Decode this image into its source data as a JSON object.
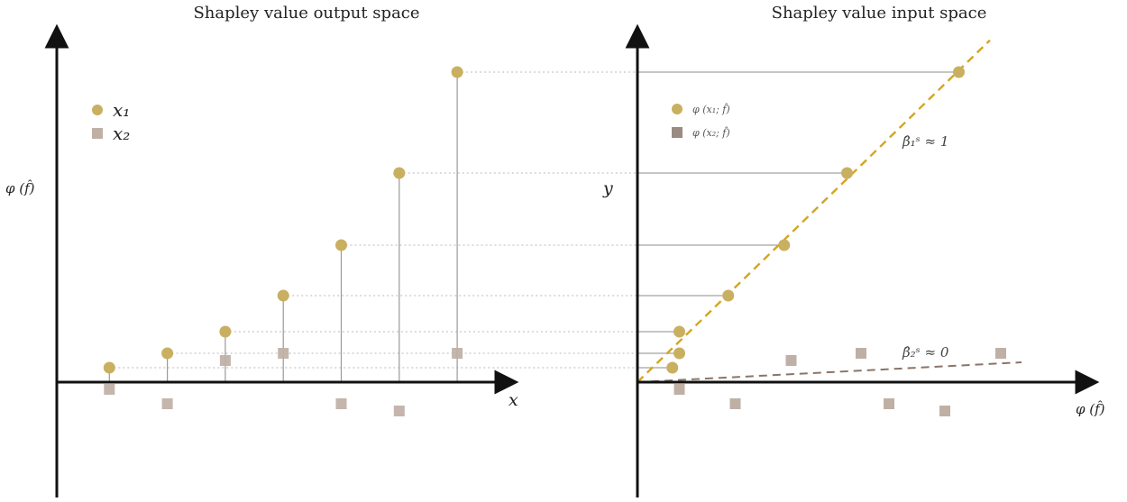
{
  "chart_data": [
    {
      "type": "scatter",
      "title": "Shapley value output space",
      "xlabel": "x",
      "ylabel": "φ (f̂)",
      "legend": {
        "placement": "top-left",
        "entries": [
          {
            "label": "x₁",
            "marker": "circle"
          },
          {
            "label": "x₂",
            "marker": "square"
          }
        ]
      },
      "x": [
        1,
        2,
        3,
        4,
        5,
        6,
        7
      ],
      "series": [
        {
          "name": "x₁",
          "values": [
            0.2,
            0.4,
            0.7,
            1.2,
            1.9,
            2.9,
            4.3
          ]
        },
        {
          "name": "x₂",
          "values": [
            -0.1,
            -0.3,
            0.3,
            0.4,
            -0.3,
            -0.4,
            0.4
          ]
        }
      ],
      "stems": "x₁ points joined to x-axis by vertical lines; dotted guides extend to the right panel"
    },
    {
      "type": "scatter",
      "title": "Shapley value input space",
      "xlabel": "φ (f̂)",
      "ylabel": "y",
      "legend": {
        "placement": "top-left",
        "entries": [
          {
            "label": "φ (x₁; f̂)",
            "marker": "circle"
          },
          {
            "label": "φ (x₂; f̂)",
            "marker": "square"
          }
        ]
      },
      "series": [
        {
          "name": "φ (x₁; f̂)",
          "points": [
            [
              0.5,
              0.2
            ],
            [
              0.6,
              0.4
            ],
            [
              0.6,
              0.7
            ],
            [
              1.3,
              1.2
            ],
            [
              2.1,
              1.9
            ],
            [
              3.0,
              2.9
            ],
            [
              4.6,
              4.3
            ]
          ]
        },
        {
          "name": "φ (x₂; f̂)",
          "points": [
            [
              0.6,
              -0.1
            ],
            [
              1.4,
              -0.3
            ],
            [
              2.2,
              0.3
            ],
            [
              3.2,
              0.4
            ],
            [
              3.6,
              -0.3
            ],
            [
              4.4,
              -0.4
            ],
            [
              5.2,
              0.4
            ]
          ]
        }
      ],
      "fit_lines": [
        {
          "label": "β̂₁ˢ ≈ 1",
          "slope": 0.94,
          "color": "#d4a520",
          "style": "dashed"
        },
        {
          "label": "β̂₂ˢ ≈ 0",
          "slope": 0.05,
          "color": "#8a7568",
          "style": "dashed"
        }
      ]
    }
  ],
  "colors": {
    "x1": "#c9b060",
    "x2": "#bfb0a5",
    "x2_legend_small": "#9a8c82",
    "axis": "#111111",
    "stem": "#9a9a9a",
    "guide": "#b8b8b8",
    "fit1": "#d4a520",
    "fit2": "#8a7568"
  }
}
